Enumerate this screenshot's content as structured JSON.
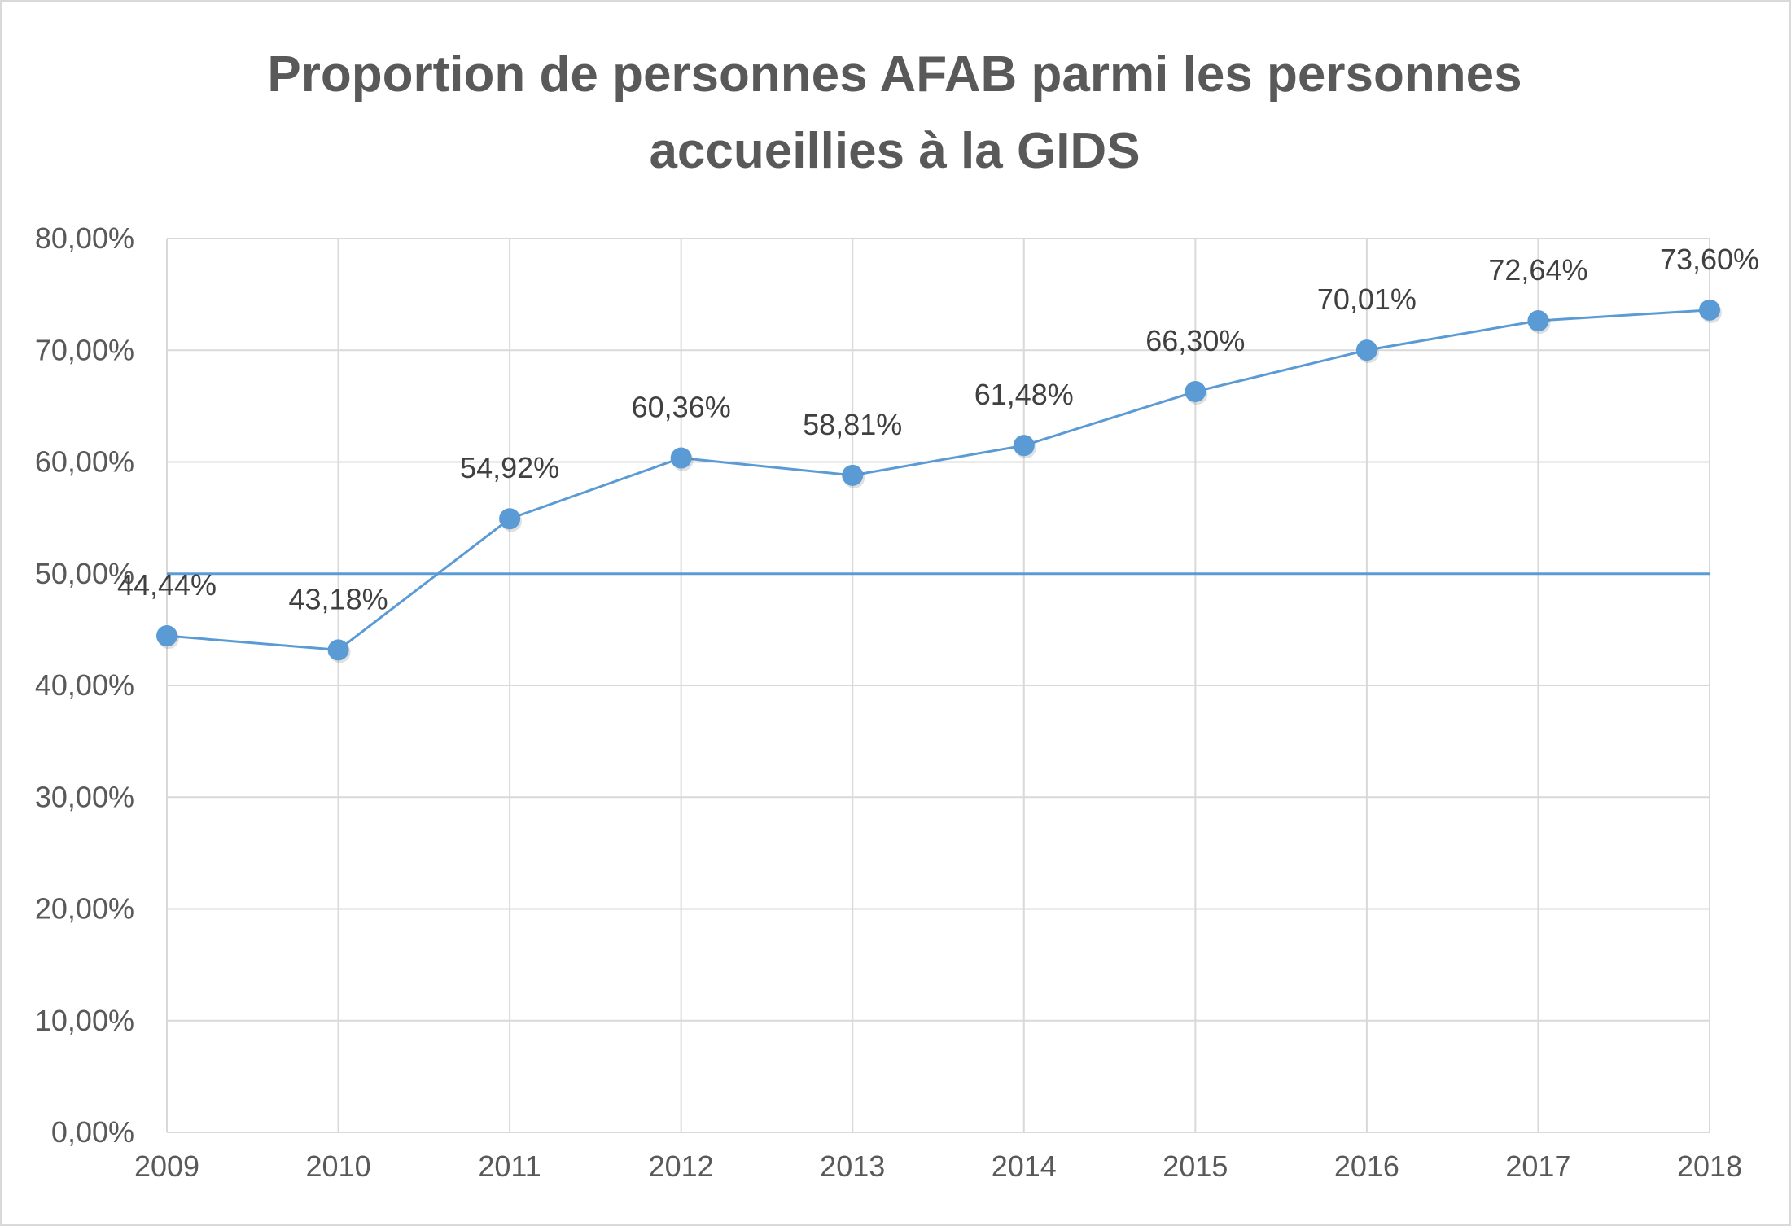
{
  "chart_data": {
    "type": "line",
    "title_lines": [
      "Proportion  de personnes  AFAB parmi  les personnes",
      "accueillies à la GIDS"
    ],
    "xlabel": "",
    "ylabel": "",
    "categories": [
      "2009",
      "2010",
      "2011",
      "2012",
      "2013",
      "2014",
      "2015",
      "2016",
      "2017",
      "2018"
    ],
    "series": [
      {
        "values": [
          44.44,
          43.18,
          54.92,
          60.36,
          58.81,
          61.48,
          66.3,
          70.01,
          72.64,
          73.6
        ],
        "labels": [
          "44,44%",
          "43,18%",
          "54,92%",
          "60,36%",
          "58,81%",
          "61,48%",
          "66,30%",
          "70,01%",
          "72,64%",
          "73,60%"
        ],
        "color": "#5b9bd5"
      }
    ],
    "reference_line": {
      "value": 50,
      "color": "#5b9bd5"
    },
    "ylim": [
      0,
      80
    ],
    "yticks": [
      0,
      10,
      20,
      30,
      40,
      50,
      60,
      70,
      80
    ],
    "ytick_labels": [
      "0,00%",
      "10,00%",
      "20,00%",
      "30,00%",
      "40,00%",
      "50,00%",
      "60,00%",
      "70,00%",
      "80,00%"
    ],
    "grid": true,
    "legend": "none",
    "gridline_color": "#d9d9d9"
  }
}
